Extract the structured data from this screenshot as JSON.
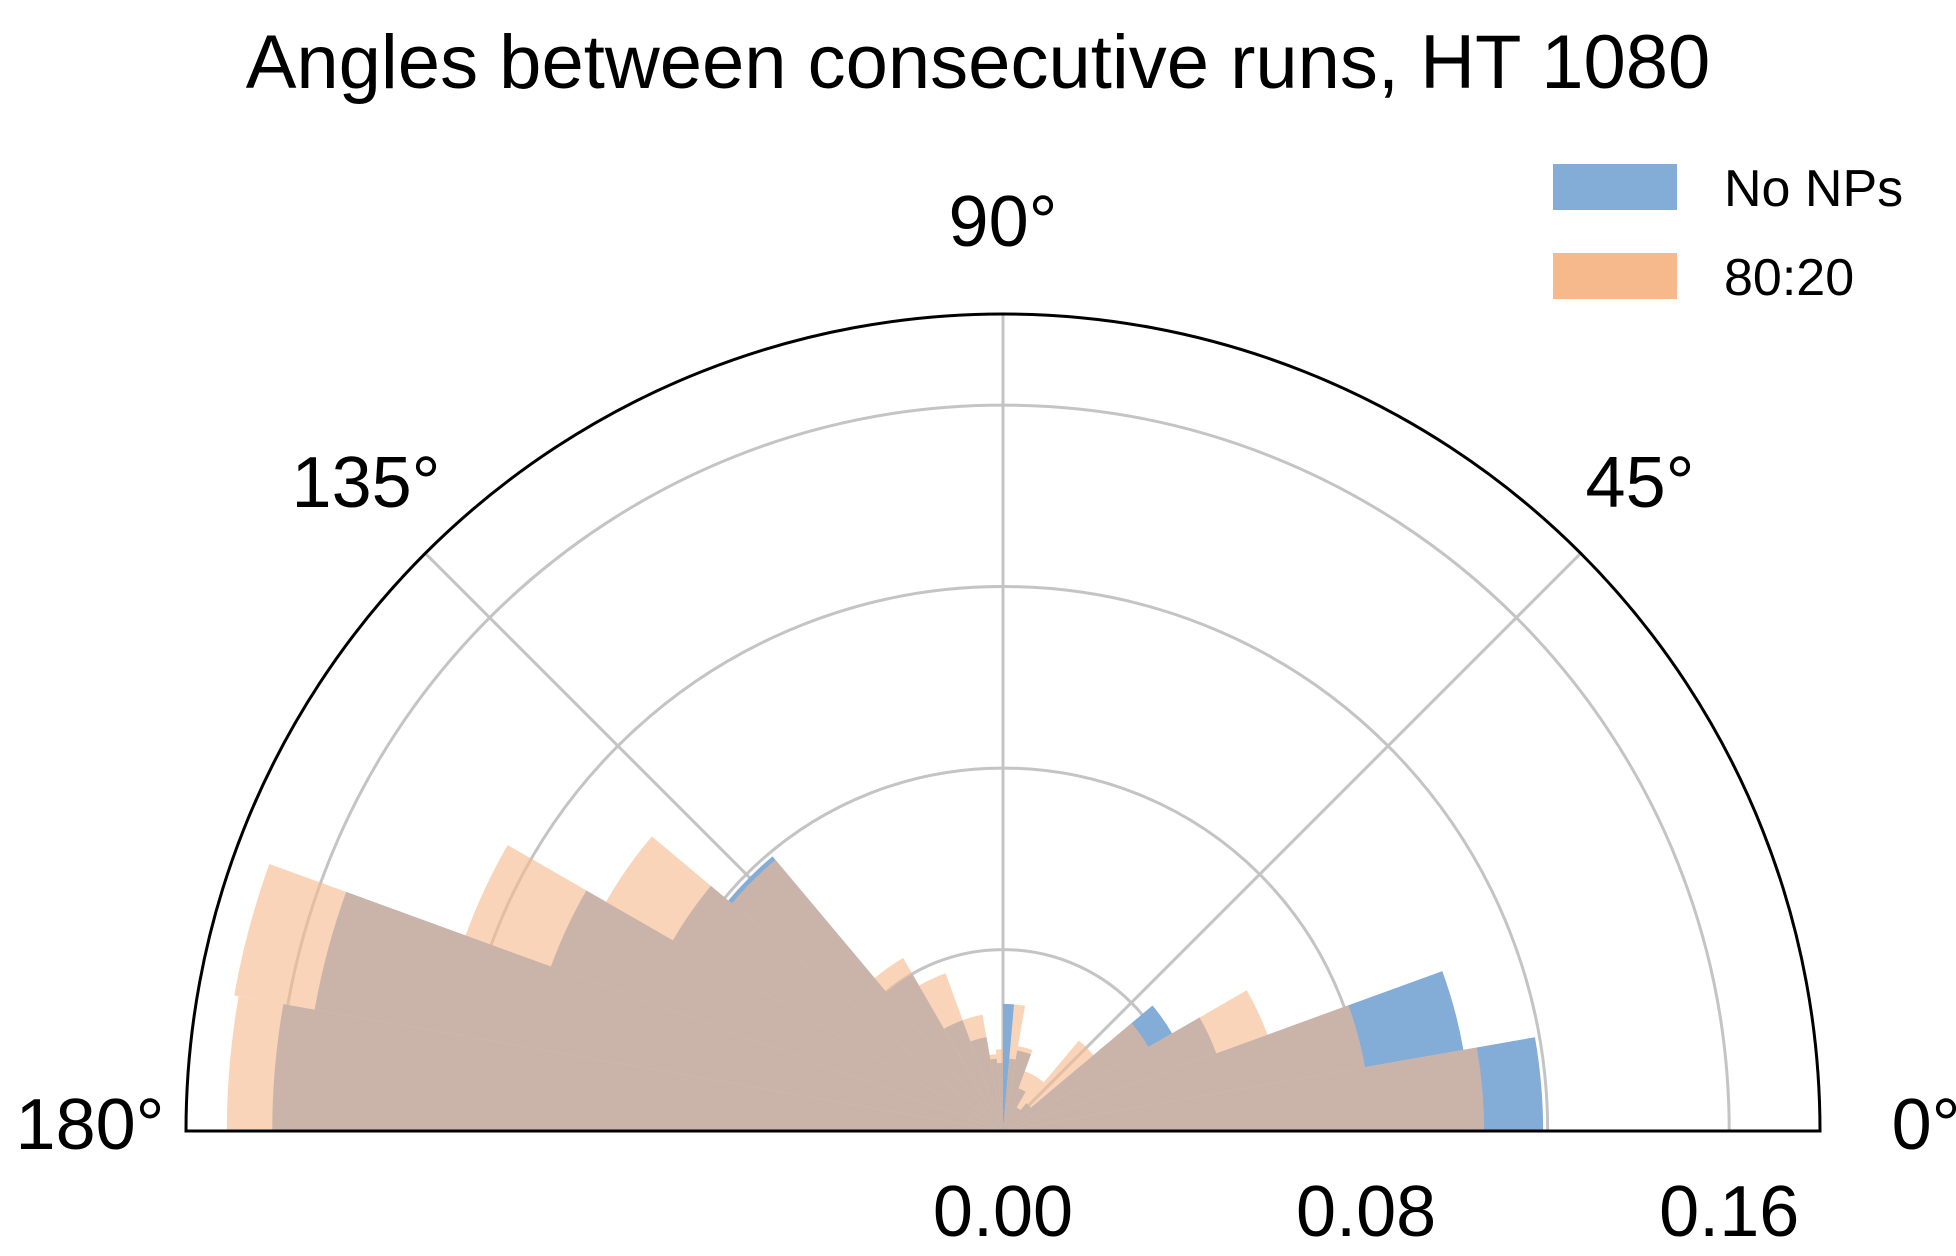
{
  "chart_data": {
    "type": "bar",
    "subtype": "polar-histogram",
    "title": "Angles between consecutive runs, HT 1080",
    "theta_range_deg": [
      0,
      180
    ],
    "theta_ticks": [
      "0°",
      "45°",
      "90°",
      "135°",
      "180°"
    ],
    "r_ticks": [
      "0.00",
      "0.08",
      "0.16"
    ],
    "r_tick_values": [
      0.0,
      0.08,
      0.16
    ],
    "rlim": [
      0,
      0.18
    ],
    "grid": true,
    "legend_position": "top-right",
    "bin_edges_deg": [
      0,
      10,
      20,
      30,
      40,
      50,
      60,
      70,
      80,
      85,
      90,
      95,
      100,
      110,
      120,
      130,
      140,
      150,
      160,
      170,
      180
    ],
    "series": [
      {
        "name": "No NPs",
        "color": "#83acd7",
        "values": [
          0.119,
          0.103,
          0.05,
          0.043,
          0.008,
          0.006,
          0.01,
          0.018,
          0.016,
          0.028,
          0.015,
          0.016,
          0.021,
          0.026,
          0.04,
          0.079,
          0.084,
          0.106,
          0.154,
          0.161
        ]
      },
      {
        "name": "80:20",
        "color": "#f5b98c",
        "values": [
          0.106,
          0.081,
          0.062,
          0.037,
          0.026,
          0.014,
          0.014,
          0.019,
          0.028,
          0.002,
          0.018,
          0.017,
          0.026,
          0.037,
          0.044,
          0.078,
          0.101,
          0.126,
          0.172,
          0.171
        ]
      }
    ]
  }
}
